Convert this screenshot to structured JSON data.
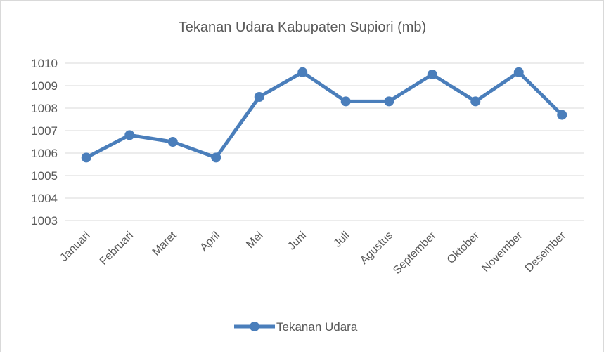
{
  "chart_data": {
    "type": "line",
    "title": "Tekanan Udara Kabupaten Supiori (mb)",
    "categories": [
      "Januari",
      "Februari",
      "Maret",
      "April",
      "Mei",
      "Juni",
      "Juli",
      "Agustus",
      "September",
      "Oktober",
      "November",
      "Desember"
    ],
    "series": [
      {
        "name": "Tekanan Udara",
        "color": "#4a7ebb",
        "values": [
          1005.8,
          1006.8,
          1006.5,
          1005.8,
          1008.5,
          1009.6,
          1008.3,
          1008.3,
          1009.5,
          1008.3,
          1009.6,
          1007.7
        ]
      }
    ],
    "ylim": [
      1003,
      1010
    ],
    "yticks": [
      1003,
      1004,
      1005,
      1006,
      1007,
      1008,
      1009,
      1010
    ],
    "grid": true,
    "legend": "bottom"
  }
}
